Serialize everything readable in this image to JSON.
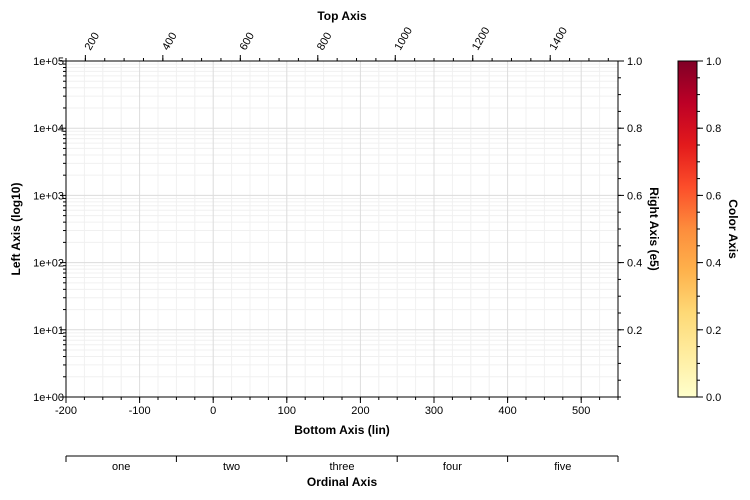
{
  "chart_data": {
    "type": "scatter",
    "series": [],
    "grid": true,
    "axes": {
      "top": {
        "title": "Top Axis",
        "scale": "linear",
        "range": [
          150,
          1575
        ],
        "tick_values": [
          200,
          400,
          600,
          800,
          1000,
          1200,
          1400
        ],
        "tick_labels": [
          "200",
          "400",
          "600",
          "800",
          "1000",
          "1200",
          "1400"
        ]
      },
      "left": {
        "title": "Left Axis (log10)",
        "scale": "log",
        "range": [
          1,
          100000
        ],
        "tick_values": [
          1,
          10,
          100,
          1000,
          10000,
          100000
        ],
        "tick_labels": [
          "1e+00",
          "1e+01",
          "1e+02",
          "1e+03",
          "1e+04",
          "1e+05"
        ]
      },
      "right": {
        "title": "Right Axis (e5)",
        "scale": "linear",
        "range": [
          0,
          1
        ],
        "tick_values": [
          0.2,
          0.4,
          0.6,
          0.8,
          1.0
        ],
        "tick_labels": [
          "0.2",
          "0.4",
          "0.6",
          "0.8",
          "1.0"
        ]
      },
      "bottom": {
        "title": "Bottom Axis (lin)",
        "scale": "linear",
        "range": [
          -200,
          550
        ],
        "tick_values": [
          -200,
          -100,
          0,
          100,
          200,
          300,
          400,
          500
        ],
        "tick_labels": [
          "-200",
          "-100",
          "0",
          "100",
          "200",
          "300",
          "400",
          "500"
        ]
      },
      "ordinal": {
        "title": "Ordinal Axis",
        "categories": [
          "one",
          "two",
          "three",
          "four",
          "five"
        ]
      }
    },
    "colorbar": {
      "title": "Color Axis",
      "range": [
        0,
        1
      ],
      "tick_values": [
        0.0,
        0.2,
        0.4,
        0.6,
        0.8,
        1.0
      ],
      "tick_labels": [
        "0.0",
        "0.2",
        "0.4",
        "0.6",
        "0.8",
        "1.0"
      ],
      "colors": [
        "#ffffcc",
        "#ffeda0",
        "#fed976",
        "#feb24c",
        "#fd8d3c",
        "#fc4e2a",
        "#e31a1c",
        "#bd0026",
        "#800026"
      ]
    }
  }
}
